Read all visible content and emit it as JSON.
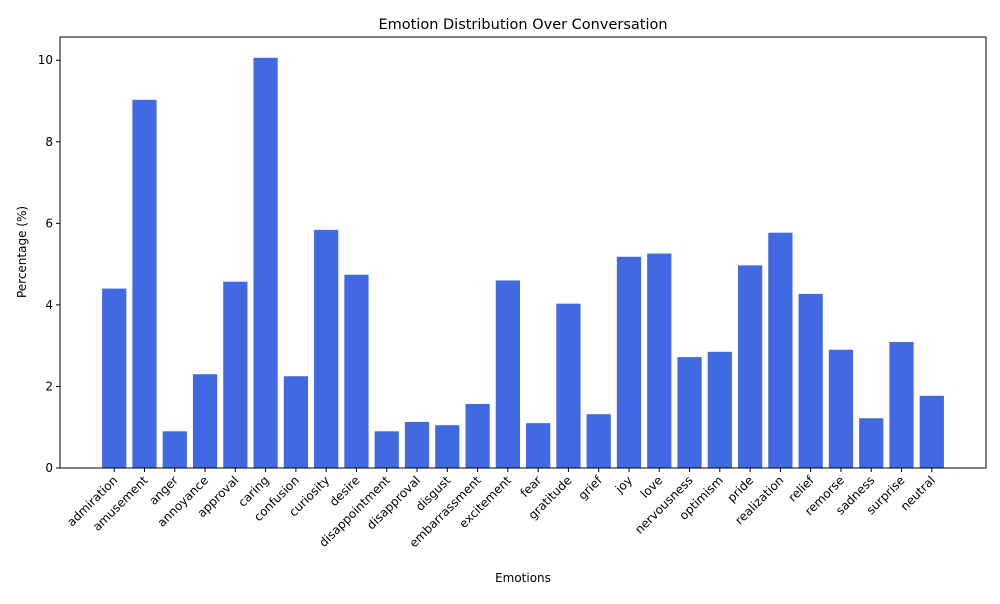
{
  "chart_data": {
    "type": "bar",
    "title": "Emotion Distribution Over Conversation",
    "xlabel": "Emotions",
    "ylabel": "Percentage (%)",
    "ylim": [
      0,
      10.57
    ],
    "yticks": [
      0,
      2,
      4,
      6,
      8,
      10
    ],
    "bar_color": "#4169E1",
    "grid": false,
    "categories": [
      "admiration",
      "amusement",
      "anger",
      "annoyance",
      "approval",
      "caring",
      "confusion",
      "curiosity",
      "desire",
      "disappointment",
      "disapproval",
      "disgust",
      "embarrassment",
      "excitement",
      "fear",
      "gratitude",
      "grief",
      "joy",
      "love",
      "nervousness",
      "optimism",
      "pride",
      "realization",
      "relief",
      "remorse",
      "sadness",
      "surprise",
      "neutral"
    ],
    "values": [
      4.4,
      9.03,
      0.9,
      2.3,
      4.57,
      10.06,
      2.25,
      5.84,
      4.74,
      0.9,
      1.13,
      1.05,
      1.57,
      4.6,
      1.1,
      4.03,
      1.32,
      5.18,
      5.26,
      2.72,
      2.85,
      4.97,
      5.77,
      4.27,
      2.9,
      1.22,
      3.09,
      1.77
    ]
  }
}
